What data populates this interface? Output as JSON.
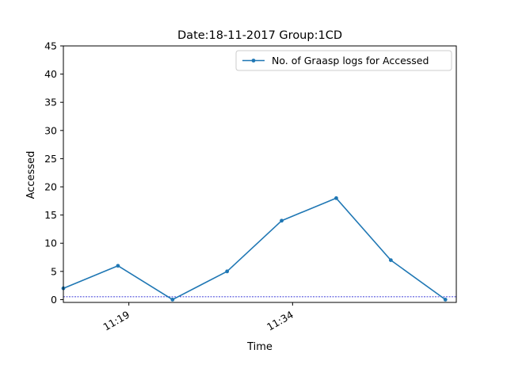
{
  "chart_data": {
    "type": "line",
    "title": "Date:18-11-2017  Group:1CD",
    "xlabel": "Time",
    "ylabel": "Accessed",
    "x_range": [
      "11:13",
      "11:49"
    ],
    "x_ticks": [
      "11:19",
      "11:34"
    ],
    "ylim": [
      -0.5,
      45
    ],
    "y_ticks": [
      "0",
      "5",
      "10",
      "15",
      "20",
      "25",
      "30",
      "35",
      "40",
      "45"
    ],
    "grid": false,
    "legend_position": "top-right",
    "reference_line": {
      "y": 0.5,
      "color": "#0000cc",
      "style": "dashed"
    },
    "series": [
      {
        "name": "No. of Graasp logs for Accessed",
        "color": "#1f77b4",
        "x": [
          "11:13",
          "11:18",
          "11:23",
          "11:28",
          "11:33",
          "11:38",
          "11:43",
          "11:48"
        ],
        "values": [
          2,
          6,
          0,
          5,
          14,
          18,
          7,
          0
        ]
      }
    ]
  }
}
